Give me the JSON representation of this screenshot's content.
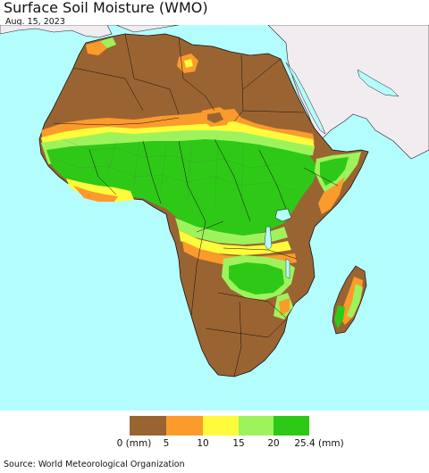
{
  "header": {
    "title": "Surface Soil Moisture (WMO)",
    "date": "Aug. 15, 2023"
  },
  "legend": {
    "classes": [
      {
        "color": "#9a6432"
      },
      {
        "color": "#fb9b2c"
      },
      {
        "color": "#fdfb3b"
      },
      {
        "color": "#9ef35d"
      },
      {
        "color": "#2ec917"
      }
    ],
    "labels": [
      "0 (mm)",
      "5",
      "10",
      "15",
      "20",
      "25.4 (mm)"
    ]
  },
  "footer": {
    "source": "Source: World Meteorological Organization"
  },
  "colors": {
    "ocean": "#b4fdff",
    "land_outside": "#f0ecf0",
    "dry": "#9a6432",
    "low": "#fb9b2c",
    "mid": "#fdfb3b",
    "moist": "#9ef35d",
    "wet": "#2ec917",
    "border": "#000000"
  }
}
